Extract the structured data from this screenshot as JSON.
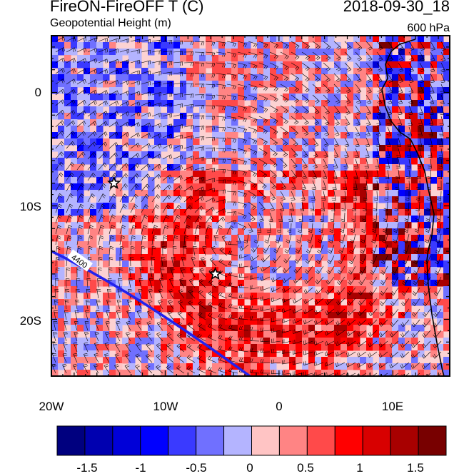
{
  "header": {
    "title": "FireON-FireOFF T (C)",
    "subtitle": "Geopotential Height (m)",
    "datetime": "2018-09-30_18",
    "level": "600 hPa"
  },
  "map": {
    "region": "Southeast Atlantic / southwest Africa coast",
    "lon_range": [
      -20,
      15
    ],
    "lat_range": [
      -25,
      5
    ],
    "lat_ticks": [
      {
        "lat": 0,
        "label": "0"
      },
      {
        "lat": -10,
        "label": "10S"
      },
      {
        "lat": -20,
        "label": "20S"
      }
    ],
    "lon_ticks": [
      {
        "lon": -20,
        "label": "20W"
      },
      {
        "lon": -10,
        "label": "10W"
      },
      {
        "lon": 0,
        "label": "0"
      },
      {
        "lon": 10,
        "label": "10E"
      }
    ],
    "contour": {
      "value": "4400",
      "color": "#1a1aff"
    },
    "markers": [
      {
        "type": "star",
        "lon": -14.5,
        "lat": -8
      },
      {
        "type": "star",
        "lon": -5.6,
        "lat": -16
      }
    ],
    "fields": [
      "temperature difference shading",
      "wind barbs",
      "coastline"
    ]
  },
  "colorbar": {
    "colors": [
      "#00007f",
      "#0000b0",
      "#0000d8",
      "#0000ff",
      "#3a3aff",
      "#7070ff",
      "#b4b4ff",
      "#ffc4c4",
      "#ff8484",
      "#ff4a4a",
      "#ff0000",
      "#d80000",
      "#a80000",
      "#780000"
    ],
    "labels": [
      "-1.5",
      "-1",
      "-0.5",
      "0",
      "0.5",
      "1",
      "1.5"
    ]
  }
}
